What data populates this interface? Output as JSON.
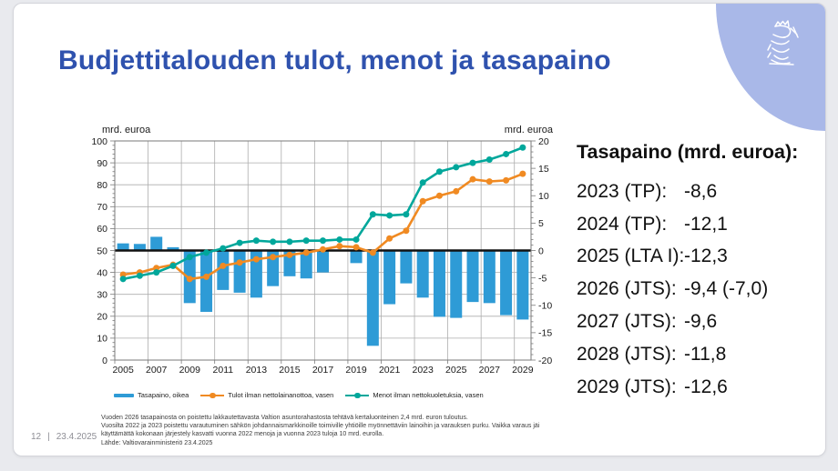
{
  "slide": {
    "title": "Budjettitalouden tulot, menot ja tasapaino",
    "footer_page": "12",
    "footer_separator": "|",
    "footer_date": "23.4.2025",
    "logo_icon": "finnish-lion-coat-of-arms",
    "colors": {
      "title": "#2f52ae",
      "corner_decoration": "#a9b8e8",
      "bar": "#2E9BD6",
      "revenue_line": "#F08A22",
      "expenditure_line": "#00A79B",
      "zero_line": "#111111",
      "grid": "#adadad"
    }
  },
  "balance_panel": {
    "heading": "Tasapaino (mrd. euroa):",
    "rows": [
      {
        "label": "2023 (TP):",
        "value": "-8,6"
      },
      {
        "label": "2024 (TP):",
        "value": "-12,1"
      },
      {
        "label": "2025 (LTA I):",
        "value": "-12,3"
      },
      {
        "label": "2026 (JTS):",
        "value": "-9,4 (-7,0)"
      },
      {
        "label": "2027 (JTS):",
        "value": "-9,6"
      },
      {
        "label": "2028 (JTS):",
        "value": "-11,8"
      },
      {
        "label": "2029 (JTS):",
        "value": "-12,6"
      }
    ]
  },
  "chart_data": {
    "type": "combo-bar-line",
    "x": [
      2005,
      2006,
      2007,
      2008,
      2009,
      2010,
      2011,
      2012,
      2013,
      2014,
      2015,
      2016,
      2017,
      2018,
      2019,
      2020,
      2021,
      2022,
      2023,
      2024,
      2025,
      2026,
      2027,
      2028,
      2029
    ],
    "bar_series": {
      "name": "Tasapaino, oikea",
      "axis": "right",
      "color": "#2E9BD6",
      "values": [
        1.3,
        1.2,
        2.5,
        0.6,
        -9.6,
        -11.2,
        -7.2,
        -7.7,
        -8.6,
        -6.5,
        -4.7,
        -5.1,
        -4.0,
        -0.1,
        -2.3,
        -17.4,
        -9.8,
        -6.0,
        -8.6,
        -12.1,
        -12.3,
        -9.4,
        -9.6,
        -11.8,
        -12.6
      ]
    },
    "line_series": [
      {
        "name": "Tulot ilman nettolainanottoa, vasen",
        "axis": "left",
        "color": "#F08A22",
        "values": [
          39,
          40,
          42,
          43.5,
          37,
          38,
          43,
          44.5,
          46,
          47,
          48,
          49,
          50.5,
          52,
          51.5,
          49,
          55.5,
          59,
          72.5,
          75,
          77,
          82.5,
          81.5,
          82,
          85
        ]
      },
      {
        "name": "Menot ilman nettokuoletuksia, vasen",
        "axis": "left",
        "color": "#00A79B",
        "values": [
          37,
          38.5,
          40,
          43,
          47,
          49,
          51,
          53.5,
          54.5,
          54,
          54,
          54.5,
          54.5,
          55,
          55,
          66.5,
          66,
          66.5,
          81,
          86,
          88,
          90,
          91.5,
          94,
          97
        ]
      }
    ],
    "left_axis": {
      "label": "mrd. euroa",
      "min": 0,
      "max": 100,
      "step": 10
    },
    "right_axis": {
      "label": "mrd. euroa",
      "min": -20,
      "max": 20,
      "step": 5
    },
    "x_tick_labels": [
      2005,
      2007,
      2009,
      2011,
      2013,
      2015,
      2017,
      2019,
      2021,
      2023,
      2025,
      2027,
      2029
    ],
    "grid": true,
    "zero_line_at_left_value": 50,
    "legend_position": "bottom"
  },
  "footnotes": [
    "Vuoden 2026 tasapainosta on poistettu lakkautettavasta Valtion asuntorahastosta tehtävä kertaluonteinen 2,4 mrd. euron tuloutus.",
    "Vuosilta 2022 ja 2023 poistettu varautuminen sähkön johdannaismarkkinoille toimiville yhtiöille myönnettäviin lainoihin ja varauksen purku. Vaikka varaus jäi",
    "käyttämättä kokonaan järjestely kasvatti vuonna 2022 menoja ja vuonna 2023 tuloja 10 mrd. eurolla.",
    "Lähde: Valtiovarainministeriö 23.4.2025"
  ]
}
